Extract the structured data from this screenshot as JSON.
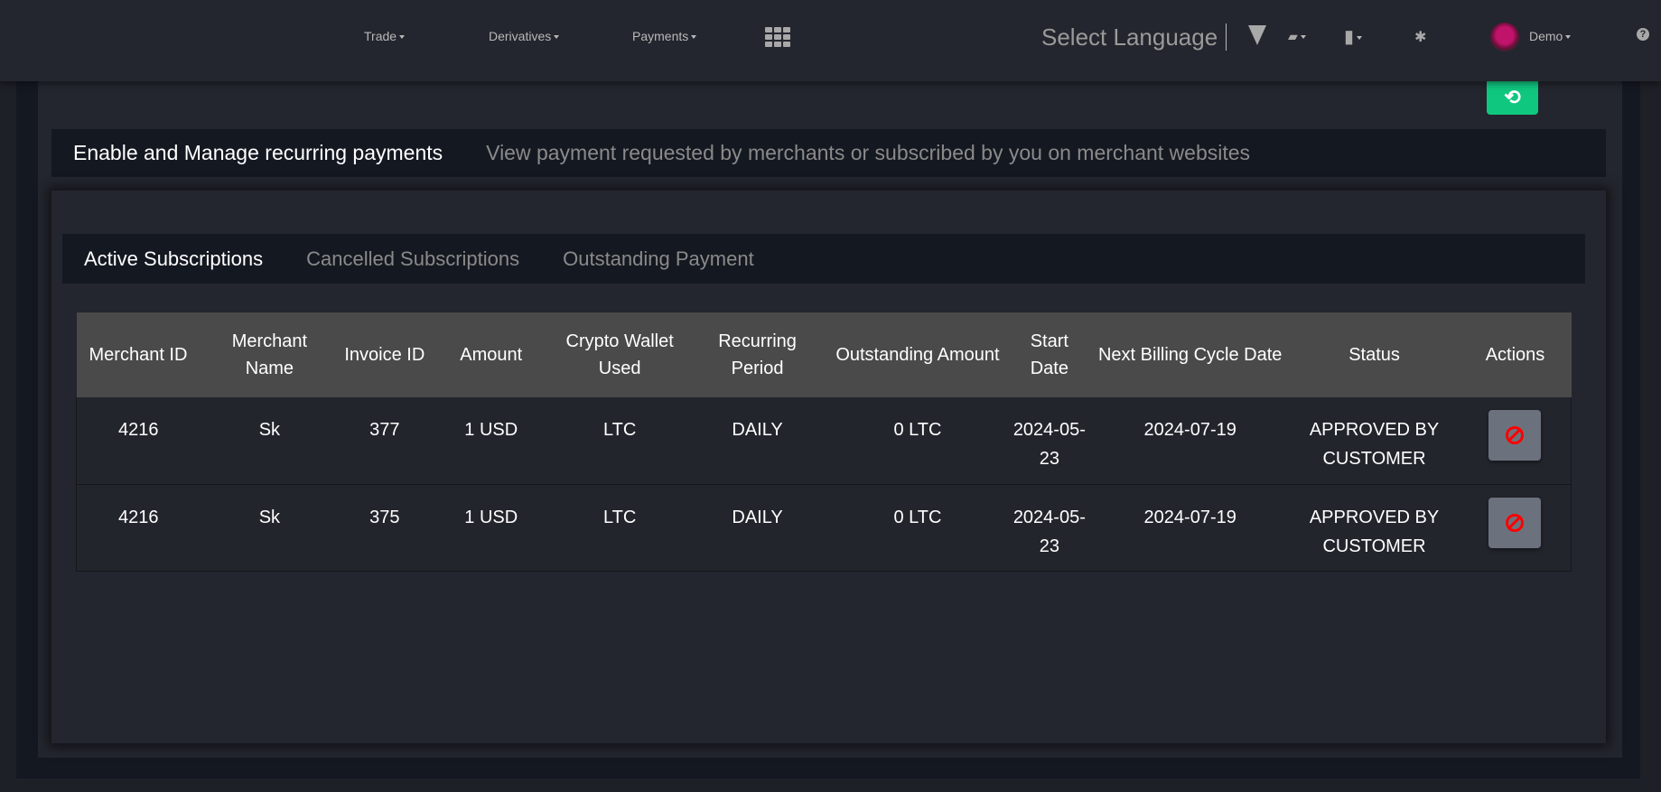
{
  "header": {
    "nav": [
      {
        "label": "Trade"
      },
      {
        "label": "Derivatives"
      },
      {
        "label": "Payments"
      }
    ],
    "select_language": "Select Language",
    "user_name": "Demo",
    "icons": [
      "apps-grid-icon",
      "triangle-down-icon",
      "book-icon",
      "wallet-icon",
      "gear-icon",
      "help-icon"
    ]
  },
  "page": {
    "title": "Enable and Manage recurring payments",
    "subtitle": "View payment requested by merchants or subscribed by you on merchant websites",
    "green_button_icon": "history-icon",
    "accent_color": "#10c77f"
  },
  "tabs": [
    {
      "label": "Active Subscriptions",
      "active": true
    },
    {
      "label": "Cancelled Subscriptions",
      "active": false
    },
    {
      "label": "Outstanding Payment",
      "active": false
    }
  ],
  "table": {
    "columns": [
      "Merchant ID",
      "Merchant Name",
      "Invoice ID",
      "Amount",
      "Crypto Wallet Used",
      "Recurring Period",
      "Outstanding Amount",
      "Start Date",
      "Next Billing Cycle Date",
      "Status",
      "Actions"
    ],
    "rows": [
      [
        "4216",
        "Sk",
        "377",
        "1 USD",
        "LTC",
        "DAILY",
        "0 LTC",
        "2024-05-23",
        "2024-07-19",
        "APPROVED BY CUSTOMER"
      ],
      [
        "4216",
        "Sk",
        "375",
        "1 USD",
        "LTC",
        "DAILY",
        "0 LTC",
        "2024-05-23",
        "2024-07-19",
        "APPROVED BY CUSTOMER"
      ]
    ],
    "action_icon": "ban-icon"
  }
}
